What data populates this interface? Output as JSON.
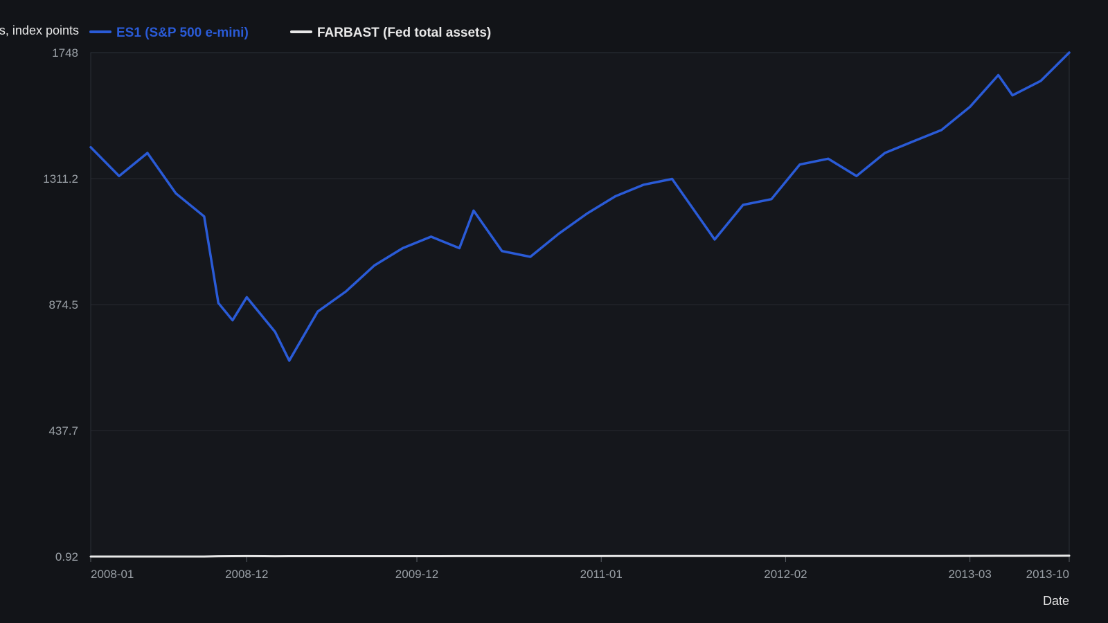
{
  "chart_data": {
    "type": "line",
    "ylabel": "s, index points",
    "xlabel": "Date",
    "ylim": [
      0.92,
      1748
    ],
    "y_ticks": [
      "1748",
      "1311.2",
      "874.5",
      "437.7",
      "0.92"
    ],
    "y_tick_values": [
      1748,
      1311.2,
      874.5,
      437.7,
      0.92
    ],
    "x_ticks": [
      "2008-01",
      "2008-12",
      "2009-12",
      "2011-01",
      "2012-02",
      "2013-03",
      "2013-10"
    ],
    "x": [
      "2008-01",
      "2008-03",
      "2008-05",
      "2008-07",
      "2008-09",
      "2008-10",
      "2008-11",
      "2008-12",
      "2009-02",
      "2009-03",
      "2009-05",
      "2009-07",
      "2009-09",
      "2009-11",
      "2010-01",
      "2010-03",
      "2010-04",
      "2010-06",
      "2010-08",
      "2010-10",
      "2010-12",
      "2011-02",
      "2011-04",
      "2011-06",
      "2011-09",
      "2011-11",
      "2012-01",
      "2012-03",
      "2012-05",
      "2012-07",
      "2012-09",
      "2012-11",
      "2013-01",
      "2013-03",
      "2013-05",
      "2013-06",
      "2013-08",
      "2013-10"
    ],
    "series": [
      {
        "name": "ES1 (S&P 500 e-mini)",
        "color": "#2a5bd7",
        "values": [
          1420,
          1320,
          1400,
          1260,
          1180,
          880,
          820,
          900,
          780,
          680,
          850,
          920,
          1010,
          1070,
          1110,
          1070,
          1200,
          1060,
          1040,
          1120,
          1190,
          1250,
          1290,
          1310,
          1100,
          1220,
          1240,
          1360,
          1380,
          1320,
          1400,
          1440,
          1480,
          1560,
          1670,
          1600,
          1650,
          1748
        ]
      },
      {
        "name": "FARBAST (Fed total assets)",
        "color": "#e8e8e8",
        "values": [
          0.92,
          0.92,
          0.92,
          0.92,
          0.92,
          1.8,
          2.2,
          2.3,
          1.9,
          2.0,
          2.1,
          2.0,
          2.1,
          2.2,
          2.2,
          2.3,
          2.3,
          2.3,
          2.3,
          2.3,
          2.4,
          2.5,
          2.6,
          2.8,
          2.9,
          2.9,
          2.9,
          2.9,
          2.9,
          2.8,
          2.8,
          2.8,
          2.9,
          3.1,
          3.3,
          3.4,
          3.6,
          3.8
        ]
      }
    ],
    "grid": true,
    "legend_position": "top"
  }
}
